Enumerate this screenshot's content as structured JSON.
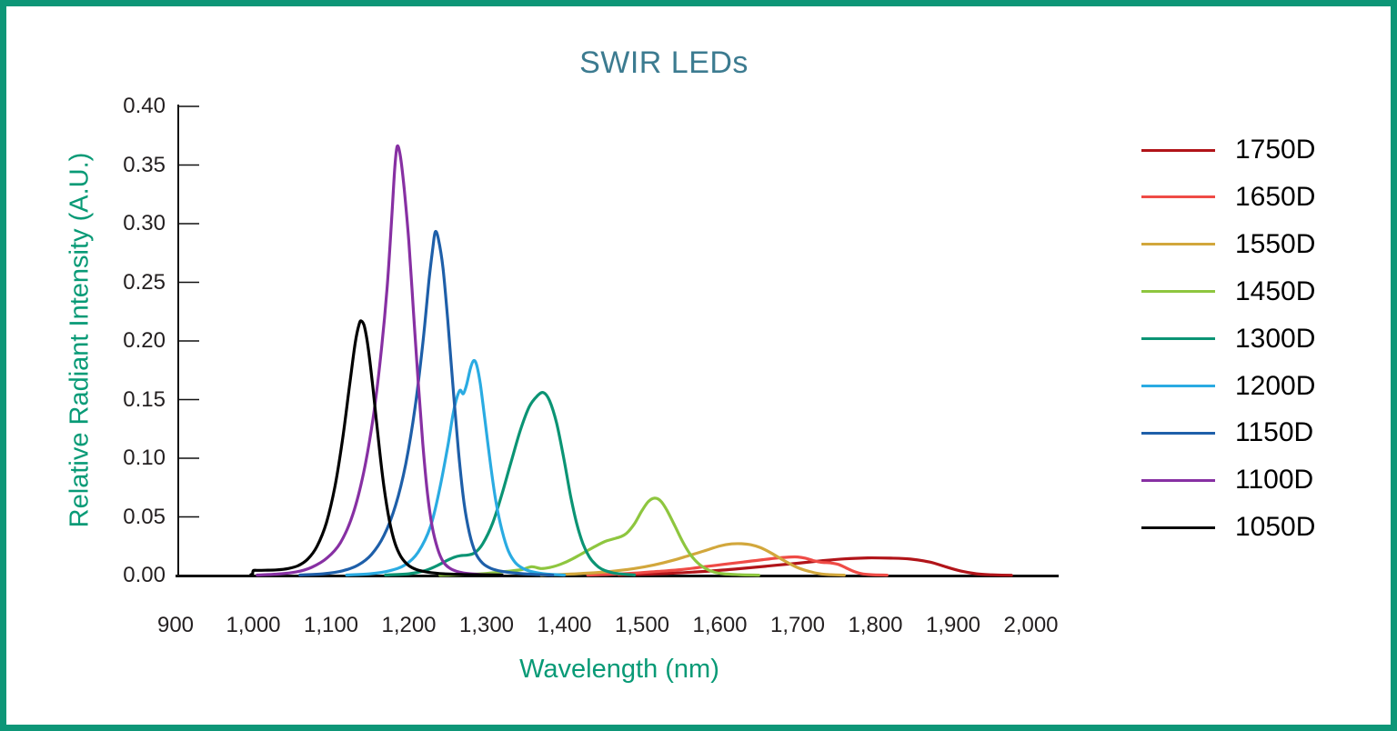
{
  "chart_data": {
    "type": "line",
    "title": "SWIR LEDs",
    "xlabel": "Wavelength (nm)",
    "ylabel": "Relative Radiant Intensity (A.U.)",
    "xlim": [
      900,
      2000
    ],
    "ylim": [
      0,
      0.4
    ],
    "grid": false,
    "legend_position": "right",
    "x_ticks": [
      {
        "value": 900,
        "label": "900"
      },
      {
        "value": 1000,
        "label": "1,000"
      },
      {
        "value": 1100,
        "label": "1,100"
      },
      {
        "value": 1200,
        "label": "1,200"
      },
      {
        "value": 1300,
        "label": "1,300"
      },
      {
        "value": 1400,
        "label": "1,400"
      },
      {
        "value": 1500,
        "label": "1,500"
      },
      {
        "value": 1600,
        "label": "1,600"
      },
      {
        "value": 1700,
        "label": "1,700"
      },
      {
        "value": 1800,
        "label": "1,800"
      },
      {
        "value": 1900,
        "label": "1,900"
      },
      {
        "value": 2000,
        "label": "2,000"
      }
    ],
    "y_ticks": [
      {
        "value": 0.0,
        "label": "0.00"
      },
      {
        "value": 0.05,
        "label": "0.05"
      },
      {
        "value": 0.1,
        "label": "0.10"
      },
      {
        "value": 0.15,
        "label": "0.15"
      },
      {
        "value": 0.2,
        "label": "0.20"
      },
      {
        "value": 0.25,
        "label": "0.25"
      },
      {
        "value": 0.3,
        "label": "0.30"
      },
      {
        "value": 0.35,
        "label": "0.35"
      },
      {
        "value": 0.4,
        "label": "0.40"
      }
    ],
    "series": [
      {
        "name": "1750D",
        "color": "#B11419",
        "peak_nm": 1790,
        "peak_intensity": 0.015,
        "points": [
          [
            1470,
            0.0005
          ],
          [
            1500,
            0.001
          ],
          [
            1540,
            0.002
          ],
          [
            1580,
            0.0035
          ],
          [
            1620,
            0.0055
          ],
          [
            1660,
            0.008
          ],
          [
            1700,
            0.0105
          ],
          [
            1730,
            0.0125
          ],
          [
            1760,
            0.0142
          ],
          [
            1790,
            0.015
          ],
          [
            1820,
            0.0148
          ],
          [
            1845,
            0.014
          ],
          [
            1870,
            0.0115
          ],
          [
            1890,
            0.0075
          ],
          [
            1910,
            0.0038
          ],
          [
            1930,
            0.0015
          ],
          [
            1950,
            0.0006
          ],
          [
            1975,
            0.0002
          ]
        ]
      },
      {
        "name": "1650D",
        "color": "#EF4B46",
        "peak_nm": 1698,
        "peak_intensity": 0.016,
        "points": [
          [
            1430,
            0.0004
          ],
          [
            1460,
            0.001
          ],
          [
            1490,
            0.002
          ],
          [
            1520,
            0.0035
          ],
          [
            1550,
            0.005
          ],
          [
            1580,
            0.0075
          ],
          [
            1605,
            0.0095
          ],
          [
            1630,
            0.0115
          ],
          [
            1655,
            0.0135
          ],
          [
            1675,
            0.015
          ],
          [
            1692,
            0.0158
          ],
          [
            1700,
            0.0158
          ],
          [
            1710,
            0.0148
          ],
          [
            1720,
            0.0128
          ],
          [
            1730,
            0.0113
          ],
          [
            1742,
            0.0108
          ],
          [
            1752,
            0.0095
          ],
          [
            1762,
            0.0066
          ],
          [
            1772,
            0.0036
          ],
          [
            1782,
            0.0016
          ],
          [
            1795,
            0.0007
          ],
          [
            1815,
            0.0003
          ]
        ]
      },
      {
        "name": "1550D",
        "color": "#D2A73C",
        "peak_nm": 1620,
        "peak_intensity": 0.027,
        "points": [
          [
            1370,
            0.0003
          ],
          [
            1400,
            0.001
          ],
          [
            1430,
            0.002
          ],
          [
            1460,
            0.0035
          ],
          [
            1490,
            0.006
          ],
          [
            1515,
            0.009
          ],
          [
            1540,
            0.013
          ],
          [
            1560,
            0.017
          ],
          [
            1580,
            0.021
          ],
          [
            1600,
            0.0252
          ],
          [
            1615,
            0.027
          ],
          [
            1628,
            0.0271
          ],
          [
            1640,
            0.0262
          ],
          [
            1652,
            0.0238
          ],
          [
            1665,
            0.0195
          ],
          [
            1678,
            0.0145
          ],
          [
            1690,
            0.01
          ],
          [
            1702,
            0.0062
          ],
          [
            1715,
            0.0035
          ],
          [
            1728,
            0.0016
          ],
          [
            1740,
            0.0008
          ],
          [
            1760,
            0.0003
          ]
        ]
      },
      {
        "name": "1450D",
        "color": "#8EC63F",
        "peak_nm": 1516,
        "peak_intensity": 0.066,
        "points": [
          [
            1240,
            0.0003
          ],
          [
            1270,
            0.0008
          ],
          [
            1300,
            0.0018
          ],
          [
            1325,
            0.0035
          ],
          [
            1345,
            0.005
          ],
          [
            1358,
            0.0075
          ],
          [
            1370,
            0.006
          ],
          [
            1382,
            0.007
          ],
          [
            1395,
            0.0095
          ],
          [
            1410,
            0.014
          ],
          [
            1425,
            0.0195
          ],
          [
            1440,
            0.025
          ],
          [
            1452,
            0.029
          ],
          [
            1462,
            0.031
          ],
          [
            1472,
            0.033
          ],
          [
            1480,
            0.036
          ],
          [
            1490,
            0.044
          ],
          [
            1500,
            0.0555
          ],
          [
            1508,
            0.063
          ],
          [
            1516,
            0.066
          ],
          [
            1524,
            0.0635
          ],
          [
            1532,
            0.0555
          ],
          [
            1542,
            0.0425
          ],
          [
            1552,
            0.029
          ],
          [
            1562,
            0.018
          ],
          [
            1572,
            0.0105
          ],
          [
            1582,
            0.0058
          ],
          [
            1592,
            0.003
          ],
          [
            1605,
            0.0015
          ],
          [
            1625,
            0.0007
          ],
          [
            1650,
            0.0003
          ]
        ]
      },
      {
        "name": "1300D",
        "color": "#0B9474",
        "peak_nm": 1373,
        "peak_intensity": 0.156,
        "points": [
          [
            1170,
            0.0004
          ],
          [
            1200,
            0.0015
          ],
          [
            1220,
            0.004
          ],
          [
            1235,
            0.008
          ],
          [
            1248,
            0.0125
          ],
          [
            1258,
            0.0155
          ],
          [
            1267,
            0.017
          ],
          [
            1276,
            0.0175
          ],
          [
            1285,
            0.0195
          ],
          [
            1295,
            0.027
          ],
          [
            1308,
            0.045
          ],
          [
            1320,
            0.07
          ],
          [
            1332,
            0.098
          ],
          [
            1344,
            0.125
          ],
          [
            1355,
            0.144
          ],
          [
            1365,
            0.153
          ],
          [
            1373,
            0.156
          ],
          [
            1381,
            0.149
          ],
          [
            1390,
            0.13
          ],
          [
            1399,
            0.101
          ],
          [
            1408,
            0.068
          ],
          [
            1416,
            0.044
          ],
          [
            1424,
            0.027
          ],
          [
            1432,
            0.016
          ],
          [
            1440,
            0.0095
          ],
          [
            1448,
            0.0055
          ],
          [
            1458,
            0.003
          ],
          [
            1470,
            0.0015
          ],
          [
            1490,
            0.0005
          ]
        ]
      },
      {
        "name": "1200D",
        "color": "#2AABE2",
        "peak_nm": 1283,
        "peak_intensity": 0.183,
        "points": [
          [
            1120,
            0.0004
          ],
          [
            1150,
            0.0015
          ],
          [
            1175,
            0.004
          ],
          [
            1195,
            0.009
          ],
          [
            1212,
            0.02
          ],
          [
            1228,
            0.042
          ],
          [
            1240,
            0.075
          ],
          [
            1250,
            0.11
          ],
          [
            1257,
            0.138
          ],
          [
            1262,
            0.152
          ],
          [
            1266,
            0.158
          ],
          [
            1270,
            0.155
          ],
          [
            1274,
            0.162
          ],
          [
            1279,
            0.176
          ],
          [
            1283,
            0.183
          ],
          [
            1287,
            0.18
          ],
          [
            1292,
            0.163
          ],
          [
            1298,
            0.132
          ],
          [
            1305,
            0.095
          ],
          [
            1312,
            0.063
          ],
          [
            1320,
            0.038
          ],
          [
            1328,
            0.021
          ],
          [
            1337,
            0.011
          ],
          [
            1347,
            0.006
          ],
          [
            1360,
            0.003
          ],
          [
            1378,
            0.0012
          ],
          [
            1400,
            0.0004
          ]
        ]
      },
      {
        "name": "1150D",
        "color": "#1E5FA9",
        "peak_nm": 1234,
        "peak_intensity": 0.293,
        "points": [
          [
            1060,
            0.0004
          ],
          [
            1090,
            0.0015
          ],
          [
            1115,
            0.004
          ],
          [
            1135,
            0.009
          ],
          [
            1152,
            0.018
          ],
          [
            1168,
            0.034
          ],
          [
            1183,
            0.06
          ],
          [
            1196,
            0.095
          ],
          [
            1208,
            0.143
          ],
          [
            1218,
            0.198
          ],
          [
            1226,
            0.252
          ],
          [
            1231,
            0.28
          ],
          [
            1234,
            0.293
          ],
          [
            1238,
            0.287
          ],
          [
            1244,
            0.262
          ],
          [
            1250,
            0.218
          ],
          [
            1257,
            0.16
          ],
          [
            1264,
            0.105
          ],
          [
            1271,
            0.062
          ],
          [
            1278,
            0.036
          ],
          [
            1286,
            0.019
          ],
          [
            1295,
            0.0105
          ],
          [
            1306,
            0.006
          ],
          [
            1320,
            0.0035
          ],
          [
            1338,
            0.002
          ],
          [
            1360,
            0.001
          ],
          [
            1385,
            0.0004
          ]
        ]
      },
      {
        "name": "1100D",
        "color": "#8730A3",
        "peak_nm": 1185,
        "peak_intensity": 0.366,
        "points": [
          [
            1005,
            0.0004
          ],
          [
            1030,
            0.0012
          ],
          [
            1055,
            0.003
          ],
          [
            1075,
            0.007
          ],
          [
            1095,
            0.015
          ],
          [
            1112,
            0.028
          ],
          [
            1128,
            0.052
          ],
          [
            1142,
            0.088
          ],
          [
            1154,
            0.134
          ],
          [
            1164,
            0.188
          ],
          [
            1172,
            0.245
          ],
          [
            1178,
            0.305
          ],
          [
            1182,
            0.348
          ],
          [
            1185,
            0.366
          ],
          [
            1189,
            0.358
          ],
          [
            1194,
            0.33
          ],
          [
            1200,
            0.285
          ],
          [
            1206,
            0.225
          ],
          [
            1212,
            0.165
          ],
          [
            1218,
            0.112
          ],
          [
            1224,
            0.07
          ],
          [
            1230,
            0.042
          ],
          [
            1237,
            0.023
          ],
          [
            1244,
            0.012
          ],
          [
            1252,
            0.0065
          ],
          [
            1262,
            0.0035
          ],
          [
            1275,
            0.0018
          ],
          [
            1295,
            0.0008
          ],
          [
            1320,
            0.0003
          ]
        ]
      },
      {
        "name": "1050D",
        "color": "#000000",
        "peak_nm": 1139,
        "peak_intensity": 0.217,
        "points": [
          [
            997,
            0.0008
          ],
          [
            999,
            0.001
          ],
          [
            1000,
            0.0042
          ],
          [
            1005,
            0.0044
          ],
          [
            1015,
            0.0045
          ],
          [
            1030,
            0.0048
          ],
          [
            1045,
            0.006
          ],
          [
            1058,
            0.0085
          ],
          [
            1070,
            0.014
          ],
          [
            1082,
            0.025
          ],
          [
            1094,
            0.045
          ],
          [
            1105,
            0.076
          ],
          [
            1115,
            0.117
          ],
          [
            1124,
            0.163
          ],
          [
            1131,
            0.198
          ],
          [
            1136,
            0.214
          ],
          [
            1139,
            0.217
          ],
          [
            1143,
            0.212
          ],
          [
            1148,
            0.193
          ],
          [
            1154,
            0.159
          ],
          [
            1161,
            0.115
          ],
          [
            1168,
            0.076
          ],
          [
            1175,
            0.047
          ],
          [
            1182,
            0.028
          ],
          [
            1190,
            0.016
          ],
          [
            1199,
            0.009
          ],
          [
            1210,
            0.005
          ],
          [
            1225,
            0.0028
          ],
          [
            1245,
            0.0015
          ],
          [
            1275,
            0.0008
          ],
          [
            1320,
            0.0004
          ]
        ]
      }
    ]
  },
  "styles": {
    "frame_color": "#0D9677",
    "title_color": "#3C7B90",
    "axis_label_color": "#089A76",
    "tick_label_color": "#231F20",
    "axis_line_color": "#111111"
  }
}
